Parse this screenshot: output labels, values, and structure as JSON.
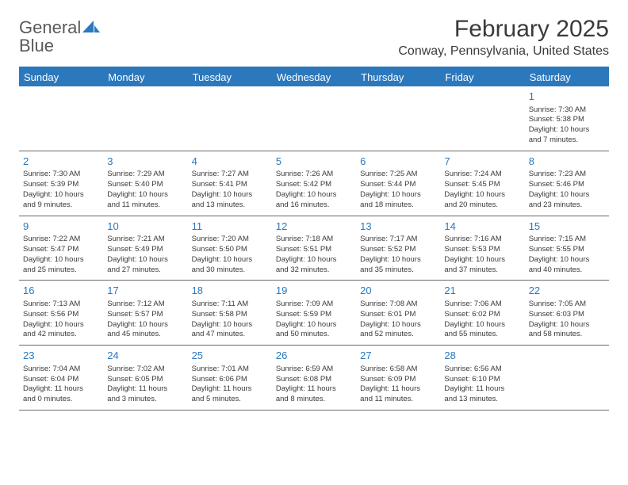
{
  "logo": {
    "text_part1": "General",
    "text_part2": "Blue"
  },
  "title": "February 2025",
  "location": "Conway, Pennsylvania, United States",
  "colors": {
    "header_bg": "#2b78bd",
    "header_text": "#ffffff",
    "daynum": "#2b78bd",
    "body_text": "#3a3a3a",
    "rule": "#6a6a6a",
    "page_bg": "#ffffff"
  },
  "typography": {
    "title_fontsize": 30,
    "location_fontsize": 16,
    "dayhead_fontsize": 13,
    "daynum_fontsize": 13,
    "info_fontsize": 9.5
  },
  "day_headers": [
    "Sunday",
    "Monday",
    "Tuesday",
    "Wednesday",
    "Thursday",
    "Friday",
    "Saturday"
  ],
  "weeks": [
    [
      null,
      null,
      null,
      null,
      null,
      null,
      {
        "n": "1",
        "sunrise": "Sunrise: 7:30 AM",
        "sunset": "Sunset: 5:38 PM",
        "day1": "Daylight: 10 hours",
        "day2": "and 7 minutes."
      }
    ],
    [
      {
        "n": "2",
        "sunrise": "Sunrise: 7:30 AM",
        "sunset": "Sunset: 5:39 PM",
        "day1": "Daylight: 10 hours",
        "day2": "and 9 minutes."
      },
      {
        "n": "3",
        "sunrise": "Sunrise: 7:29 AM",
        "sunset": "Sunset: 5:40 PM",
        "day1": "Daylight: 10 hours",
        "day2": "and 11 minutes."
      },
      {
        "n": "4",
        "sunrise": "Sunrise: 7:27 AM",
        "sunset": "Sunset: 5:41 PM",
        "day1": "Daylight: 10 hours",
        "day2": "and 13 minutes."
      },
      {
        "n": "5",
        "sunrise": "Sunrise: 7:26 AM",
        "sunset": "Sunset: 5:42 PM",
        "day1": "Daylight: 10 hours",
        "day2": "and 16 minutes."
      },
      {
        "n": "6",
        "sunrise": "Sunrise: 7:25 AM",
        "sunset": "Sunset: 5:44 PM",
        "day1": "Daylight: 10 hours",
        "day2": "and 18 minutes."
      },
      {
        "n": "7",
        "sunrise": "Sunrise: 7:24 AM",
        "sunset": "Sunset: 5:45 PM",
        "day1": "Daylight: 10 hours",
        "day2": "and 20 minutes."
      },
      {
        "n": "8",
        "sunrise": "Sunrise: 7:23 AM",
        "sunset": "Sunset: 5:46 PM",
        "day1": "Daylight: 10 hours",
        "day2": "and 23 minutes."
      }
    ],
    [
      {
        "n": "9",
        "sunrise": "Sunrise: 7:22 AM",
        "sunset": "Sunset: 5:47 PM",
        "day1": "Daylight: 10 hours",
        "day2": "and 25 minutes."
      },
      {
        "n": "10",
        "sunrise": "Sunrise: 7:21 AM",
        "sunset": "Sunset: 5:49 PM",
        "day1": "Daylight: 10 hours",
        "day2": "and 27 minutes."
      },
      {
        "n": "11",
        "sunrise": "Sunrise: 7:20 AM",
        "sunset": "Sunset: 5:50 PM",
        "day1": "Daylight: 10 hours",
        "day2": "and 30 minutes."
      },
      {
        "n": "12",
        "sunrise": "Sunrise: 7:18 AM",
        "sunset": "Sunset: 5:51 PM",
        "day1": "Daylight: 10 hours",
        "day2": "and 32 minutes."
      },
      {
        "n": "13",
        "sunrise": "Sunrise: 7:17 AM",
        "sunset": "Sunset: 5:52 PM",
        "day1": "Daylight: 10 hours",
        "day2": "and 35 minutes."
      },
      {
        "n": "14",
        "sunrise": "Sunrise: 7:16 AM",
        "sunset": "Sunset: 5:53 PM",
        "day1": "Daylight: 10 hours",
        "day2": "and 37 minutes."
      },
      {
        "n": "15",
        "sunrise": "Sunrise: 7:15 AM",
        "sunset": "Sunset: 5:55 PM",
        "day1": "Daylight: 10 hours",
        "day2": "and 40 minutes."
      }
    ],
    [
      {
        "n": "16",
        "sunrise": "Sunrise: 7:13 AM",
        "sunset": "Sunset: 5:56 PM",
        "day1": "Daylight: 10 hours",
        "day2": "and 42 minutes."
      },
      {
        "n": "17",
        "sunrise": "Sunrise: 7:12 AM",
        "sunset": "Sunset: 5:57 PM",
        "day1": "Daylight: 10 hours",
        "day2": "and 45 minutes."
      },
      {
        "n": "18",
        "sunrise": "Sunrise: 7:11 AM",
        "sunset": "Sunset: 5:58 PM",
        "day1": "Daylight: 10 hours",
        "day2": "and 47 minutes."
      },
      {
        "n": "19",
        "sunrise": "Sunrise: 7:09 AM",
        "sunset": "Sunset: 5:59 PM",
        "day1": "Daylight: 10 hours",
        "day2": "and 50 minutes."
      },
      {
        "n": "20",
        "sunrise": "Sunrise: 7:08 AM",
        "sunset": "Sunset: 6:01 PM",
        "day1": "Daylight: 10 hours",
        "day2": "and 52 minutes."
      },
      {
        "n": "21",
        "sunrise": "Sunrise: 7:06 AM",
        "sunset": "Sunset: 6:02 PM",
        "day1": "Daylight: 10 hours",
        "day2": "and 55 minutes."
      },
      {
        "n": "22",
        "sunrise": "Sunrise: 7:05 AM",
        "sunset": "Sunset: 6:03 PM",
        "day1": "Daylight: 10 hours",
        "day2": "and 58 minutes."
      }
    ],
    [
      {
        "n": "23",
        "sunrise": "Sunrise: 7:04 AM",
        "sunset": "Sunset: 6:04 PM",
        "day1": "Daylight: 11 hours",
        "day2": "and 0 minutes."
      },
      {
        "n": "24",
        "sunrise": "Sunrise: 7:02 AM",
        "sunset": "Sunset: 6:05 PM",
        "day1": "Daylight: 11 hours",
        "day2": "and 3 minutes."
      },
      {
        "n": "25",
        "sunrise": "Sunrise: 7:01 AM",
        "sunset": "Sunset: 6:06 PM",
        "day1": "Daylight: 11 hours",
        "day2": "and 5 minutes."
      },
      {
        "n": "26",
        "sunrise": "Sunrise: 6:59 AM",
        "sunset": "Sunset: 6:08 PM",
        "day1": "Daylight: 11 hours",
        "day2": "and 8 minutes."
      },
      {
        "n": "27",
        "sunrise": "Sunrise: 6:58 AM",
        "sunset": "Sunset: 6:09 PM",
        "day1": "Daylight: 11 hours",
        "day2": "and 11 minutes."
      },
      {
        "n": "28",
        "sunrise": "Sunrise: 6:56 AM",
        "sunset": "Sunset: 6:10 PM",
        "day1": "Daylight: 11 hours",
        "day2": "and 13 minutes."
      },
      null
    ]
  ]
}
